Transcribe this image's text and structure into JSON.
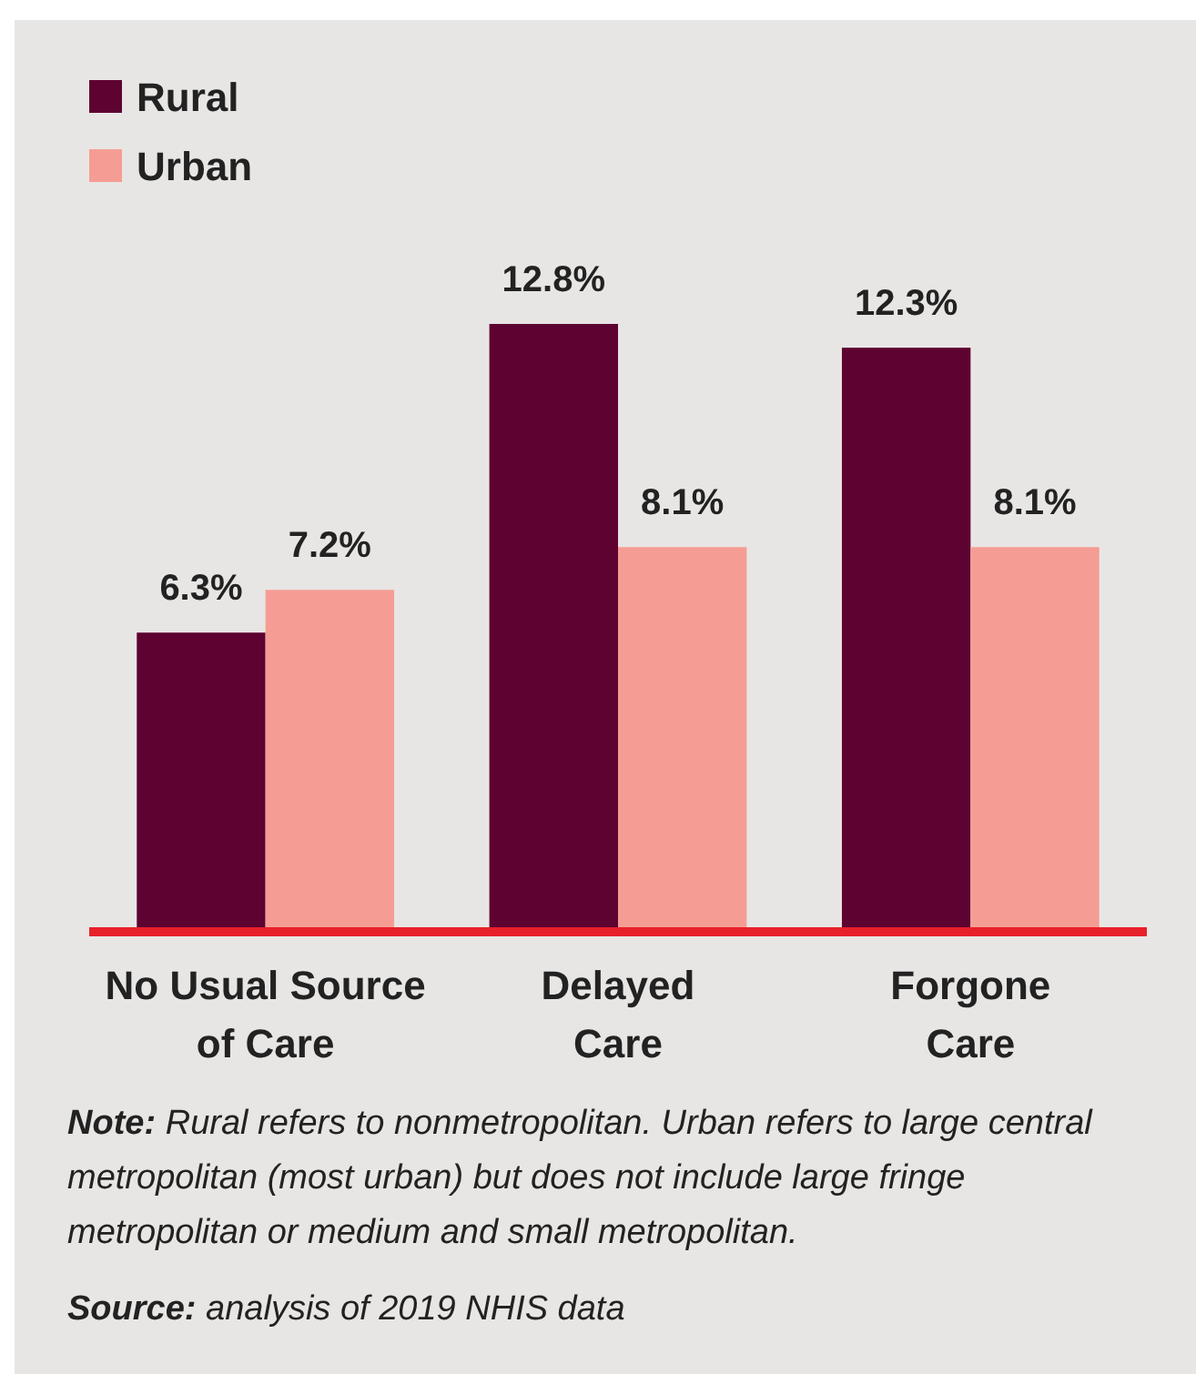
{
  "chart_data": {
    "type": "bar",
    "categories": [
      "No Usual Source of Care",
      "Delayed Care",
      "Forgone Care"
    ],
    "series": [
      {
        "name": "Rural",
        "color": "#5e0331",
        "values": [
          6.3,
          12.8,
          12.3
        ],
        "value_labels": [
          "6.3%",
          "12.8%",
          "12.3%"
        ]
      },
      {
        "name": "Urban",
        "color": "#f59d94",
        "values": [
          7.2,
          8.1,
          8.1
        ],
        "value_labels": [
          "7.2%",
          "8.1%",
          "8.1%"
        ]
      }
    ],
    "legend": "top left",
    "annotations": [
      "Note: Rural refers to nonmetropolitan. Urban refers to large central metropolitan (most urban) but does not include large fringe metropolitan or medium and small metropolitan.",
      "Source: analysis of 2019 NHIS data"
    ]
  }
}
